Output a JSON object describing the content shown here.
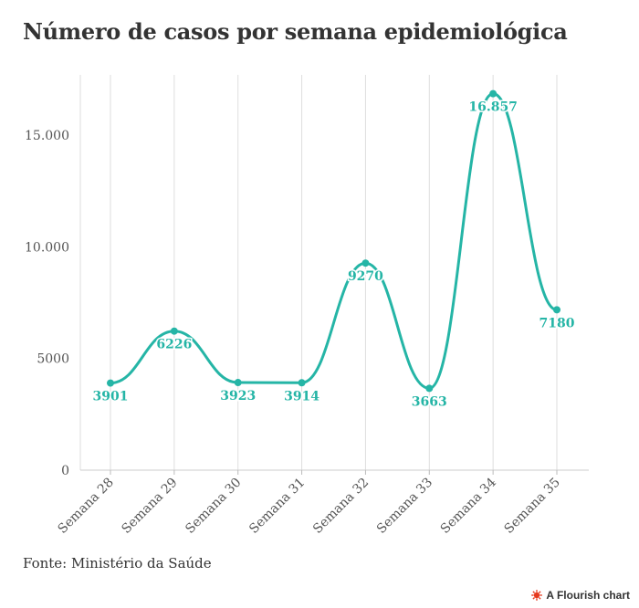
{
  "title": "Número de casos por semana epidemiológica",
  "source": "Fonte: Ministério da Saúde",
  "credit": "A Flourish chart",
  "colors": {
    "line": "#25b5a6",
    "grid": "#dedede",
    "axis": "#555555",
    "text": "#333333",
    "credit_icon": "#e63a1f"
  },
  "chart_data": {
    "type": "line",
    "title": "Número de casos por semana epidemiológica",
    "categories": [
      "Semana 28",
      "Semana 29",
      "Semana 30",
      "Semana 31",
      "Semana 32",
      "Semana 33",
      "Semana 34",
      "Semana 35"
    ],
    "values": [
      3901,
      6226,
      3923,
      3914,
      9270,
      3663,
      16857,
      7180
    ],
    "data_labels": [
      "3901",
      "6226",
      "3923",
      "3914",
      "9270",
      "3663",
      "16.857",
      "7180"
    ],
    "y_ticks": [
      0,
      5000,
      10000,
      15000
    ],
    "y_tick_labels": [
      "0",
      "5000",
      "10.000",
      "15.000"
    ],
    "ylim": [
      0,
      17700
    ],
    "grid": "vertical",
    "curve": "smooth"
  }
}
